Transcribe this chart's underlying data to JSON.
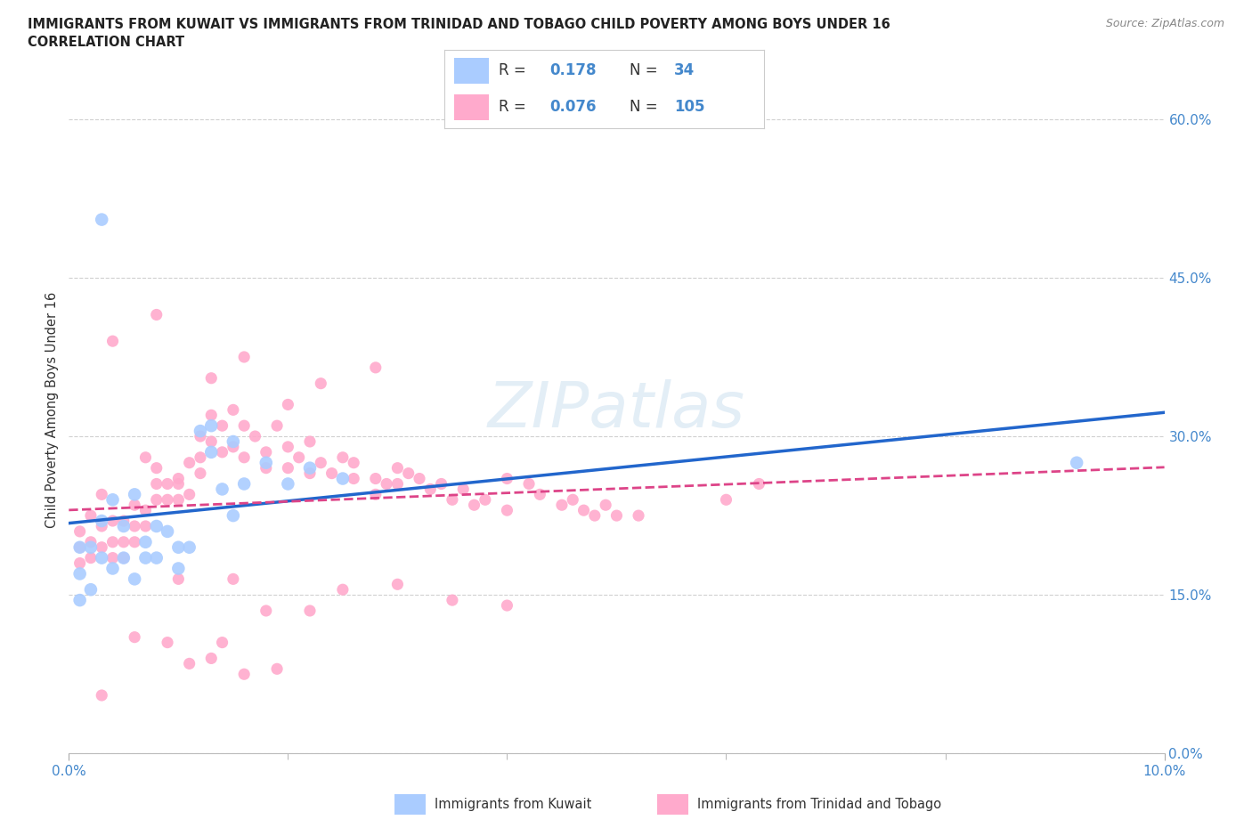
{
  "title_line1": "IMMIGRANTS FROM KUWAIT VS IMMIGRANTS FROM TRINIDAD AND TOBAGO CHILD POVERTY AMONG BOYS UNDER 16",
  "title_line2": "CORRELATION CHART",
  "source_text": "Source: ZipAtlas.com",
  "ylabel": "Child Poverty Among Boys Under 16",
  "xlim": [
    0.0,
    0.1
  ],
  "ylim": [
    0.0,
    0.65
  ],
  "ytick_positions": [
    0.0,
    0.15,
    0.3,
    0.45,
    0.6
  ],
  "ytick_labels": [
    "0.0%",
    "15.0%",
    "30.0%",
    "45.0%",
    "60.0%"
  ],
  "xtick_positions": [
    0.0,
    0.02,
    0.04,
    0.06,
    0.08,
    0.1
  ],
  "xtick_labels_show": [
    "0.0%",
    "10.0%"
  ],
  "grid_color": "#d0d0d0",
  "background_color": "#ffffff",
  "kuwait_color": "#aaccff",
  "trinidad_color": "#ffaacc",
  "kuwait_line_color": "#2266cc",
  "trinidad_line_color": "#dd4488",
  "R_kuwait": "0.178",
  "N_kuwait": "34",
  "R_trinidad": "0.076",
  "N_trinidad": "105",
  "legend_label_kuwait": "Immigrants from Kuwait",
  "legend_label_trinidad": "Immigrants from Trinidad and Tobago",
  "label_color": "#4488cc",
  "tick_color": "#4488cc",
  "kuwait_x": [
    0.001,
    0.001,
    0.001,
    0.002,
    0.002,
    0.003,
    0.003,
    0.004,
    0.004,
    0.005,
    0.005,
    0.006,
    0.006,
    0.007,
    0.007,
    0.008,
    0.008,
    0.009,
    0.01,
    0.01,
    0.011,
    0.012,
    0.013,
    0.014,
    0.015,
    0.016,
    0.018,
    0.02,
    0.022,
    0.025,
    0.013,
    0.003,
    0.092,
    0.015
  ],
  "kuwait_y": [
    0.195,
    0.17,
    0.145,
    0.195,
    0.155,
    0.22,
    0.185,
    0.24,
    0.175,
    0.215,
    0.185,
    0.165,
    0.245,
    0.2,
    0.185,
    0.185,
    0.215,
    0.21,
    0.195,
    0.175,
    0.195,
    0.305,
    0.31,
    0.25,
    0.295,
    0.255,
    0.275,
    0.255,
    0.27,
    0.26,
    0.285,
    0.505,
    0.275,
    0.225
  ],
  "trinidad_x": [
    0.001,
    0.001,
    0.001,
    0.002,
    0.002,
    0.002,
    0.003,
    0.003,
    0.003,
    0.004,
    0.004,
    0.004,
    0.005,
    0.005,
    0.005,
    0.006,
    0.006,
    0.006,
    0.007,
    0.007,
    0.007,
    0.008,
    0.008,
    0.008,
    0.009,
    0.009,
    0.01,
    0.01,
    0.01,
    0.011,
    0.011,
    0.012,
    0.012,
    0.012,
    0.013,
    0.013,
    0.014,
    0.014,
    0.015,
    0.015,
    0.016,
    0.016,
    0.017,
    0.018,
    0.018,
    0.019,
    0.02,
    0.02,
    0.021,
    0.022,
    0.022,
    0.023,
    0.024,
    0.025,
    0.026,
    0.026,
    0.028,
    0.028,
    0.029,
    0.03,
    0.03,
    0.031,
    0.032,
    0.033,
    0.034,
    0.035,
    0.036,
    0.037,
    0.038,
    0.04,
    0.04,
    0.042,
    0.043,
    0.045,
    0.046,
    0.047,
    0.048,
    0.049,
    0.05,
    0.052,
    0.004,
    0.008,
    0.013,
    0.016,
    0.02,
    0.023,
    0.028,
    0.015,
    0.018,
    0.022,
    0.01,
    0.025,
    0.03,
    0.035,
    0.04,
    0.06,
    0.063,
    0.016,
    0.013,
    0.019,
    0.006,
    0.009,
    0.011,
    0.014,
    0.003
  ],
  "trinidad_y": [
    0.21,
    0.195,
    0.18,
    0.225,
    0.2,
    0.185,
    0.215,
    0.195,
    0.245,
    0.22,
    0.2,
    0.185,
    0.22,
    0.2,
    0.185,
    0.235,
    0.215,
    0.2,
    0.23,
    0.215,
    0.28,
    0.27,
    0.255,
    0.24,
    0.255,
    0.24,
    0.255,
    0.24,
    0.26,
    0.275,
    0.245,
    0.265,
    0.28,
    0.3,
    0.295,
    0.32,
    0.285,
    0.31,
    0.29,
    0.325,
    0.28,
    0.31,
    0.3,
    0.285,
    0.27,
    0.31,
    0.27,
    0.29,
    0.28,
    0.265,
    0.295,
    0.275,
    0.265,
    0.28,
    0.26,
    0.275,
    0.26,
    0.245,
    0.255,
    0.27,
    0.255,
    0.265,
    0.26,
    0.25,
    0.255,
    0.24,
    0.25,
    0.235,
    0.24,
    0.23,
    0.26,
    0.255,
    0.245,
    0.235,
    0.24,
    0.23,
    0.225,
    0.235,
    0.225,
    0.225,
    0.39,
    0.415,
    0.355,
    0.375,
    0.33,
    0.35,
    0.365,
    0.165,
    0.135,
    0.135,
    0.165,
    0.155,
    0.16,
    0.145,
    0.14,
    0.24,
    0.255,
    0.075,
    0.09,
    0.08,
    0.11,
    0.105,
    0.085,
    0.105,
    0.055
  ]
}
